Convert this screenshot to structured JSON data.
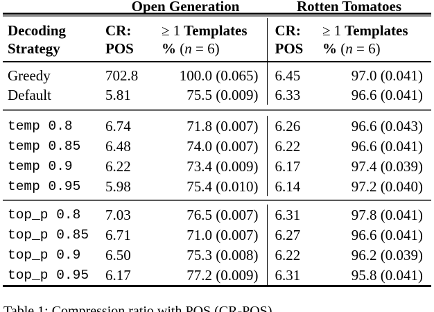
{
  "table": {
    "group_headers": [
      {
        "label": "Open Generation"
      },
      {
        "label": "Rotten Tomatoes"
      }
    ],
    "col_headers": {
      "strategy_line1": "Decoding",
      "strategy_line2": "Strategy",
      "cr_line1": "CR:",
      "cr_line2": "POS",
      "templates_geq": "≥ 1",
      "templates_word": "Templates",
      "pct": "%",
      "paren_open": "(",
      "n_var": "n",
      "paren_close": " = 6)"
    },
    "groups": [
      {
        "rows": [
          {
            "strategy": "Greedy",
            "mono": false,
            "open_cr_pos": "702.8",
            "open_templates": "100.0 (0.065)",
            "rt_cr_pos": "6.45",
            "rt_templates": "97.0 (0.041)"
          },
          {
            "strategy": "Default",
            "mono": false,
            "open_cr_pos": "5.81",
            "open_templates": "75.5 (0.009)",
            "rt_cr_pos": "6.33",
            "rt_templates": "96.6 (0.041)"
          }
        ]
      },
      {
        "rows": [
          {
            "strategy": "temp 0.8",
            "mono": true,
            "open_cr_pos": "6.74",
            "open_templates": "71.8 (0.007)",
            "rt_cr_pos": "6.26",
            "rt_templates": "96.6 (0.043)"
          },
          {
            "strategy": "temp 0.85",
            "mono": true,
            "open_cr_pos": "6.48",
            "open_templates": "74.0 (0.007)",
            "rt_cr_pos": "6.22",
            "rt_templates": "96.6 (0.041)"
          },
          {
            "strategy": "temp 0.9",
            "mono": true,
            "open_cr_pos": "6.22",
            "open_templates": "73.4 (0.009)",
            "rt_cr_pos": "6.17",
            "rt_templates": "97.4 (0.039)"
          },
          {
            "strategy": "temp 0.95",
            "mono": true,
            "open_cr_pos": "5.98",
            "open_templates": "75.4 (0.010)",
            "rt_cr_pos": "6.14",
            "rt_templates": "97.2 (0.040)"
          }
        ]
      },
      {
        "rows": [
          {
            "strategy": "top_p 0.8",
            "mono": true,
            "open_cr_pos": "7.03",
            "open_templates": "76.5 (0.007)",
            "rt_cr_pos": "6.31",
            "rt_templates": "97.8 (0.041)"
          },
          {
            "strategy": "top_p 0.85",
            "mono": true,
            "open_cr_pos": "6.71",
            "open_templates": "71.0 (0.007)",
            "rt_cr_pos": "6.27",
            "rt_templates": "96.6 (0.041)"
          },
          {
            "strategy": "top_p 0.9",
            "mono": true,
            "open_cr_pos": "6.50",
            "open_templates": "75.3 (0.008)",
            "rt_cr_pos": "6.22",
            "rt_templates": "96.2 (0.039)"
          },
          {
            "strategy": "top_p 0.95",
            "mono": true,
            "open_cr_pos": "6.17",
            "open_templates": "77.2 (0.009)",
            "rt_cr_pos": "6.31",
            "rt_templates": "95.8 (0.041)"
          }
        ]
      }
    ]
  },
  "caption": "Table 1: Compression ratio with POS (CR-POS)"
}
